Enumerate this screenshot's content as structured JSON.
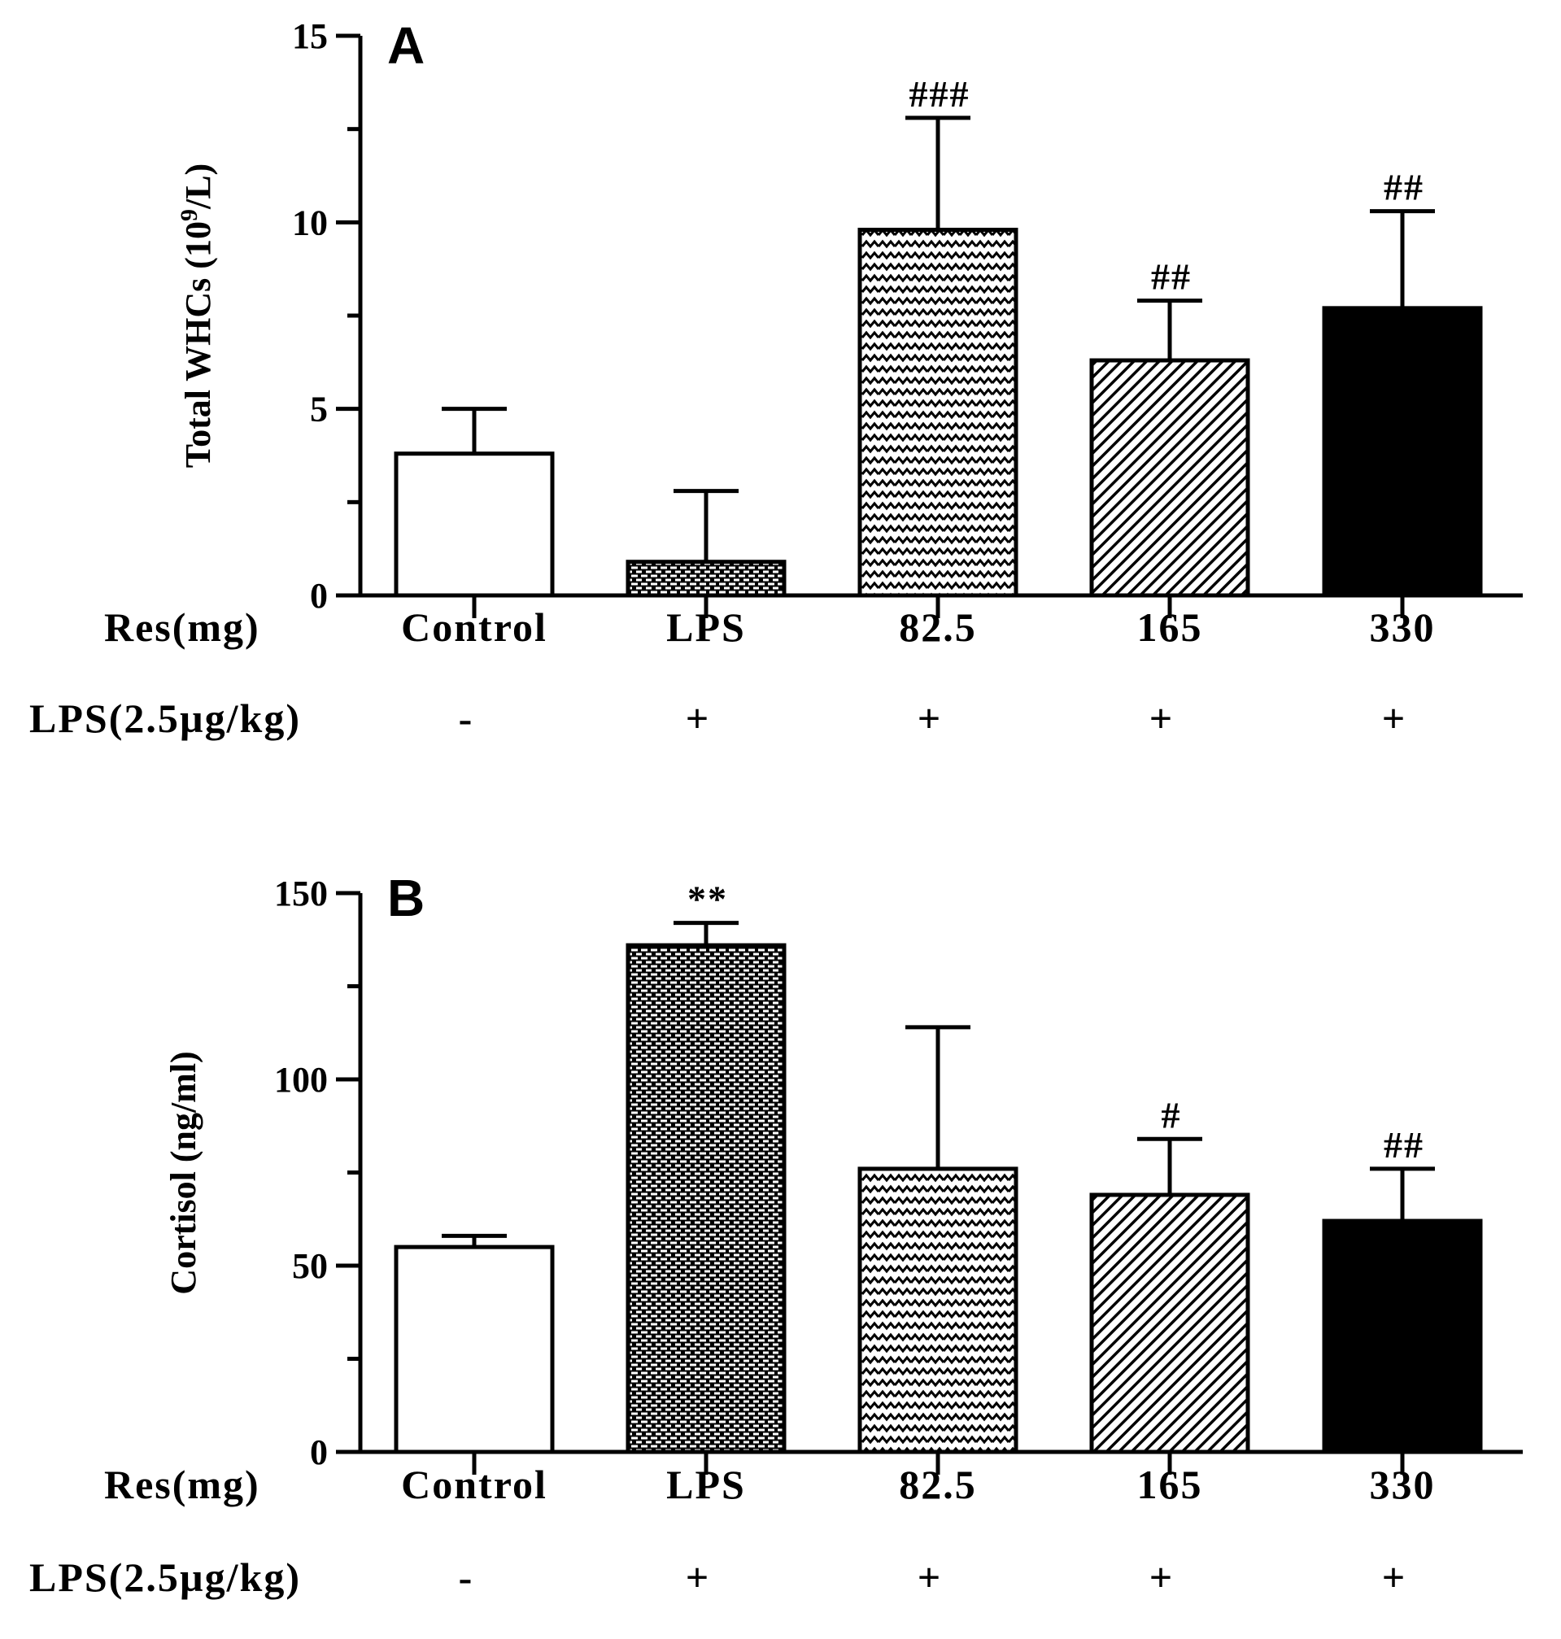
{
  "chart_data": [
    {
      "type": "bar",
      "panel": "A",
      "ylabel_main": "Total WHCs (10",
      "ylabel_sup": "9",
      "ylabel_tail": "/L)",
      "ylim": [
        0,
        15
      ],
      "yticks": [
        0,
        5,
        10,
        15
      ],
      "row_labels": [
        "Res(mg)",
        "LPS(2.5µg/kg)"
      ],
      "categories": [
        "Control",
        "LPS",
        "82.5",
        "165",
        "330"
      ],
      "lps_signs": [
        "-",
        "+",
        "+",
        "+",
        "+"
      ],
      "values": [
        3.8,
        0.9,
        9.8,
        6.3,
        7.7
      ],
      "errors": [
        1.2,
        1.9,
        3.0,
        1.6,
        2.6
      ],
      "annotations": [
        "",
        "",
        "###",
        "##",
        "##"
      ],
      "fills": [
        "white",
        "brick",
        "zigzag",
        "diagonal",
        "black"
      ]
    },
    {
      "type": "bar",
      "panel": "B",
      "ylabel_main": "Cortisol (ng/ml)",
      "ylabel_sup": "",
      "ylabel_tail": "",
      "ylim": [
        0,
        150
      ],
      "yticks": [
        0,
        50,
        100,
        150
      ],
      "row_labels": [
        "Res(mg)",
        "LPS(2.5µg/kg)"
      ],
      "categories": [
        "Control",
        "LPS",
        "82.5",
        "165",
        "330"
      ],
      "lps_signs": [
        "-",
        "+",
        "+",
        "+",
        "+"
      ],
      "values": [
        55,
        136,
        76,
        69,
        62
      ],
      "errors": [
        3,
        6,
        38,
        15,
        14
      ],
      "annotations": [
        "",
        "**",
        "",
        "#",
        "##"
      ],
      "fills": [
        "white",
        "brick",
        "zigzag",
        "diagonal",
        "black"
      ]
    }
  ]
}
